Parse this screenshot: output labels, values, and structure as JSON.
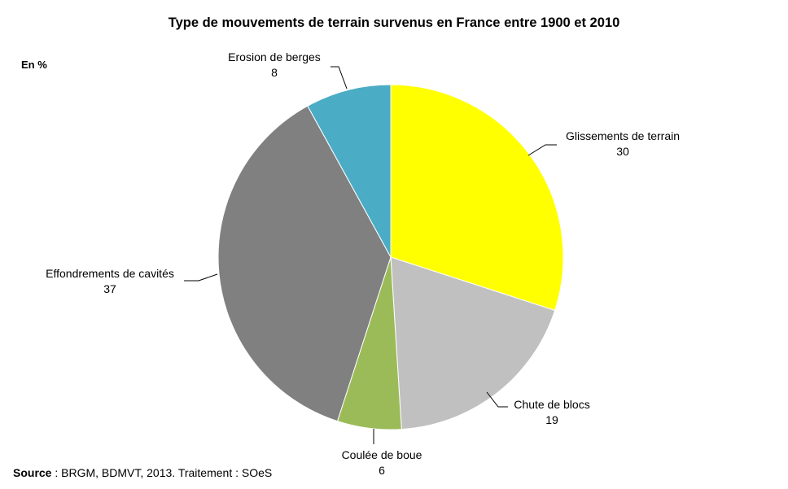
{
  "chart_data": {
    "type": "pie",
    "title": "Type de mouvements de terrain survenus en France entre 1900 et 2010",
    "unit_label": "En %",
    "source_label": "Source",
    "source_text": " : BRGM, BDMVT, 2013. Traitement : SOeS",
    "slices": [
      {
        "label": "Glissements de terrain",
        "value": 30,
        "color": "#FFFF00"
      },
      {
        "label": "Chute de blocs",
        "value": 19,
        "color": "#C0C0C0"
      },
      {
        "label": "Coulée de boue",
        "value": 6,
        "color": "#9BBB59"
      },
      {
        "label": "Effondrements de cavités",
        "value": 37,
        "color": "#808080"
      },
      {
        "label": "Erosion de berges",
        "value": 8,
        "color": "#4BACC6"
      }
    ]
  }
}
